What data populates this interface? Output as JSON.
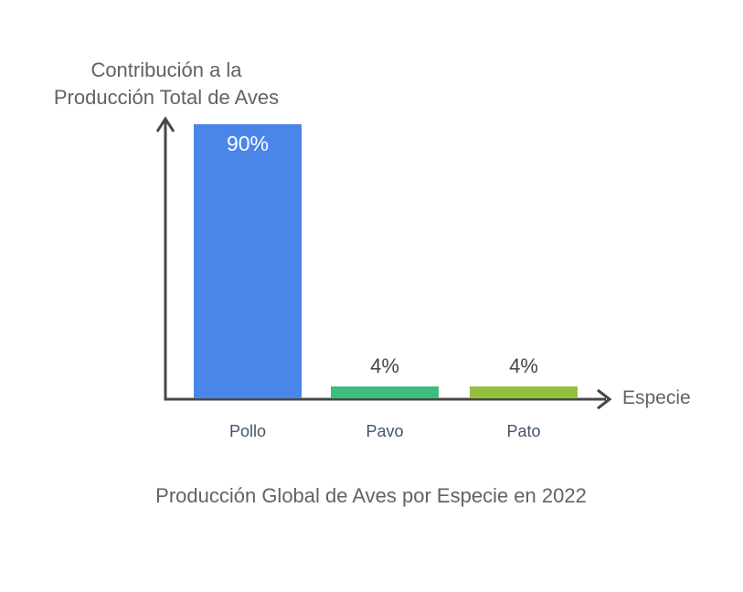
{
  "chart_data": {
    "type": "bar",
    "title": "Producción Global de Aves por Especie en 2022",
    "y_axis_title": "Contribución a la Producción Total de Aves",
    "x_axis_title": "Especie",
    "categories": [
      "Pollo",
      "Pavo",
      "Pato"
    ],
    "values": [
      90,
      4,
      4
    ],
    "value_labels": [
      "90%",
      "4%",
      "4%"
    ],
    "unit": "%",
    "bar_colors": [
      "#4a86e8",
      "#3dbe7d",
      "#93c13e"
    ],
    "axis_color": "#474747",
    "category_label_color": "#44546a",
    "value_label_color_inside": "#ffffff",
    "value_label_color_above": "#3e4a47",
    "title_color": "#5f6368",
    "ylim": [
      0,
      100
    ],
    "grid": false,
    "legend": false
  }
}
